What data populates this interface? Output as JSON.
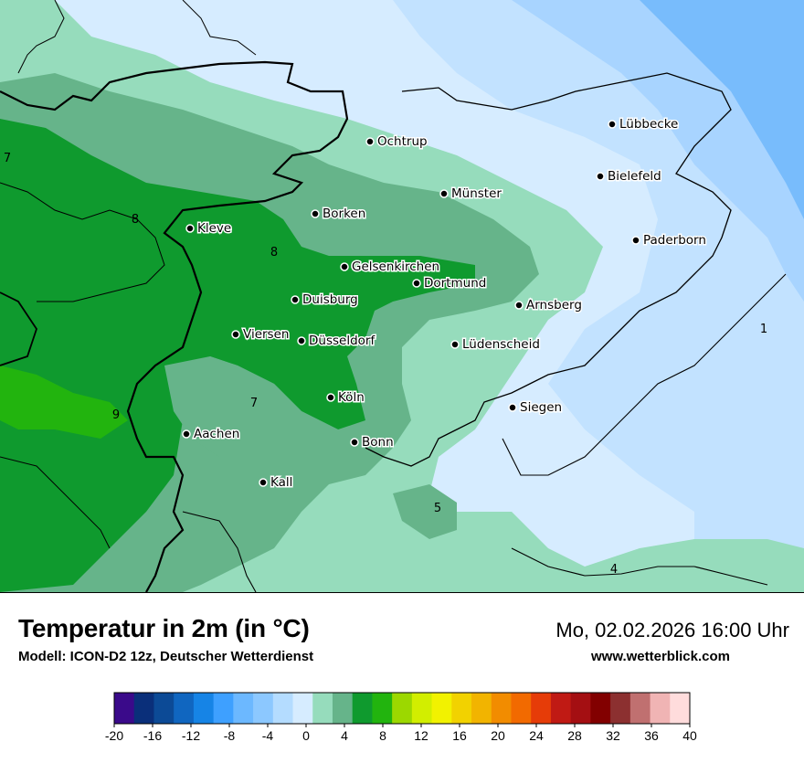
{
  "map": {
    "cities": [
      {
        "name": "Lübbecke"
      },
      {
        "name": "Ochtrup"
      },
      {
        "name": "Bielefeld"
      },
      {
        "name": "Münster"
      },
      {
        "name": "Borken"
      },
      {
        "name": "Kleve"
      },
      {
        "name": "Paderborn"
      },
      {
        "name": "Gelsenkirchen"
      },
      {
        "name": "Dortmund"
      },
      {
        "name": "Duisburg"
      },
      {
        "name": "Arnsberg"
      },
      {
        "name": "Viersen"
      },
      {
        "name": "Düsseldorf"
      },
      {
        "name": "Lüdenscheid"
      },
      {
        "name": "Köln"
      },
      {
        "name": "Siegen"
      },
      {
        "name": "Aachen"
      },
      {
        "name": "Bonn"
      },
      {
        "name": "Kall"
      }
    ],
    "isolines": [
      {
        "label": "7"
      },
      {
        "label": "8"
      },
      {
        "label": "8"
      },
      {
        "label": "1"
      },
      {
        "label": "7"
      },
      {
        "label": "9"
      },
      {
        "label": "5"
      },
      {
        "label": "4"
      }
    ]
  },
  "footer": {
    "title": "Temperatur in 2m (in °C)",
    "model": "Modell: ICON-D2 12z, Deutscher Wetterdienst",
    "datetime": "Mo, 02.02.2026 16:00 Uhr",
    "website": "www.wetterblick.com"
  },
  "legend": {
    "unit": "°C",
    "min": -20,
    "max": 40,
    "step": 2,
    "tick_labels": [
      "-20",
      "-16",
      "-12",
      "-8",
      "-4",
      "0",
      "4",
      "8",
      "12",
      "16",
      "20",
      "24",
      "28",
      "32",
      "36",
      "40"
    ],
    "colors": [
      "#3a0a8a",
      "#0a2f7a",
      "#0c4a96",
      "#1066c0",
      "#1684e6",
      "#3ea0ff",
      "#6cb8ff",
      "#8cc8ff",
      "#b4dcff",
      "#d6ecff",
      "#96dcbc",
      "#66b48a",
      "#0f9a2e",
      "#22b40e",
      "#9cd800",
      "#d2ee00",
      "#f2f200",
      "#f2d200",
      "#f2b400",
      "#f28c00",
      "#f26a00",
      "#e63c08",
      "#c01a14",
      "#a40f12",
      "#820000",
      "#8c3030",
      "#c07070",
      "#f0b4b4",
      "#ffdcdc"
    ]
  }
}
